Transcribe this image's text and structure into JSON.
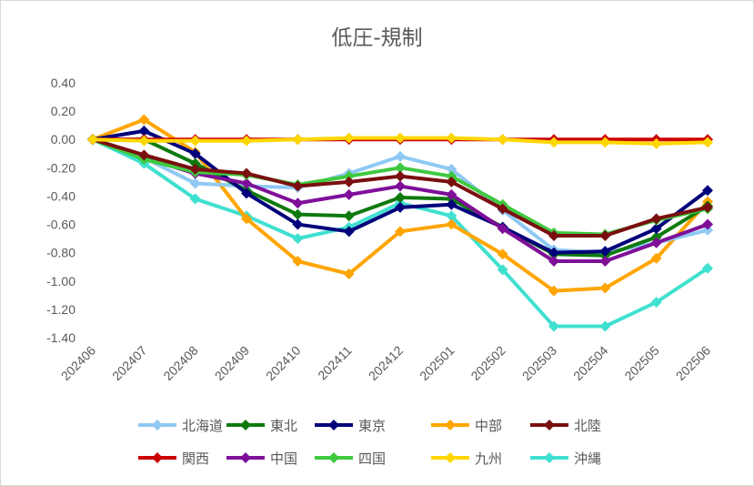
{
  "chart_data": {
    "type": "line",
    "title": "低圧-規制",
    "xlabel": "",
    "ylabel": "",
    "ylim": [
      -1.4,
      0.4
    ],
    "yticks": [
      "0.40",
      "0.20",
      "0.00",
      "-0.20",
      "-0.40",
      "-0.60",
      "-0.80",
      "-1.00",
      "-1.20",
      "-1.40"
    ],
    "grid": false,
    "legend_position": "bottom",
    "categories": [
      "202406",
      "202407",
      "202408",
      "202409",
      "202410",
      "202411",
      "202412",
      "202501",
      "202502",
      "202503",
      "202504",
      "202505",
      "202506"
    ],
    "series": [
      {
        "name": "北海道",
        "color": "#8fc9f4",
        "values": [
          0.0,
          -0.13,
          -0.31,
          -0.33,
          -0.34,
          -0.24,
          -0.12,
          -0.21,
          -0.5,
          -0.78,
          -0.8,
          -0.73,
          -0.64
        ]
      },
      {
        "name": "東北",
        "color": "#0f7a0f",
        "values": [
          0.0,
          0.0,
          -0.17,
          -0.36,
          -0.53,
          -0.54,
          -0.41,
          -0.42,
          -0.62,
          -0.81,
          -0.82,
          -0.69,
          -0.47
        ]
      },
      {
        "name": "東京",
        "color": "#00007a",
        "values": [
          0.0,
          0.06,
          -0.1,
          -0.38,
          -0.6,
          -0.65,
          -0.48,
          -0.46,
          -0.62,
          -0.8,
          -0.79,
          -0.63,
          -0.36
        ]
      },
      {
        "name": "中部",
        "color": "#ffa500",
        "values": [
          0.0,
          0.14,
          -0.09,
          -0.56,
          -0.86,
          -0.95,
          -0.65,
          -0.6,
          -0.81,
          -1.07,
          -1.05,
          -0.84,
          -0.44
        ]
      },
      {
        "name": "北陸",
        "color": "#7a0f0f",
        "values": [
          0.0,
          -0.11,
          -0.21,
          -0.24,
          -0.33,
          -0.3,
          -0.26,
          -0.3,
          -0.49,
          -0.68,
          -0.68,
          -0.56,
          -0.48
        ]
      },
      {
        "name": "関西",
        "color": "#cc0000",
        "values": [
          0.0,
          0.0,
          0.0,
          0.0,
          0.0,
          0.0,
          0.0,
          0.0,
          0.0,
          0.0,
          0.0,
          0.0,
          0.0
        ]
      },
      {
        "name": "中国",
        "color": "#7f0f99",
        "values": [
          0.0,
          -0.13,
          -0.24,
          -0.31,
          -0.45,
          -0.39,
          -0.33,
          -0.39,
          -0.63,
          -0.86,
          -0.86,
          -0.73,
          -0.6
        ]
      },
      {
        "name": "四国",
        "color": "#3fc93f",
        "values": [
          0.0,
          -0.14,
          -0.23,
          -0.25,
          -0.32,
          -0.26,
          -0.2,
          -0.26,
          -0.46,
          -0.66,
          -0.67,
          -0.57,
          -0.49
        ]
      },
      {
        "name": "九州",
        "color": "#ffd700",
        "values": [
          0.0,
          -0.01,
          -0.01,
          -0.01,
          0.0,
          0.01,
          0.01,
          0.01,
          0.0,
          -0.02,
          -0.02,
          -0.03,
          -0.02
        ]
      },
      {
        "name": "沖縄",
        "color": "#40e0d0",
        "values": [
          0.0,
          -0.17,
          -0.42,
          -0.54,
          -0.7,
          -0.62,
          -0.45,
          -0.54,
          -0.92,
          -1.32,
          -1.32,
          -1.15,
          -0.91
        ]
      }
    ]
  }
}
